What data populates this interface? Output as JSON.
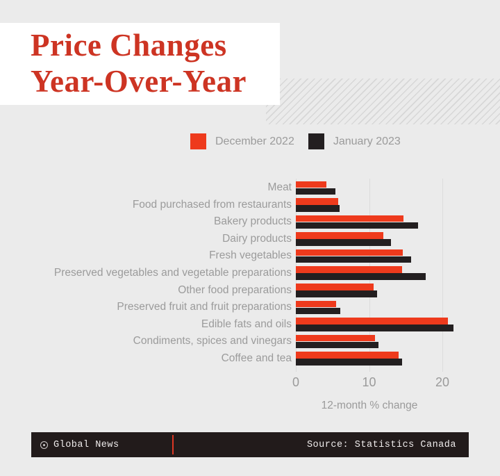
{
  "header": {
    "title_line1": "Price Changes",
    "title_line2": "Year-Over-Year",
    "title_color": "#cd3423"
  },
  "legend": [
    {
      "label": "December 2022",
      "color": "#ee3a1c"
    },
    {
      "label": "January 2023",
      "color": "#231f20"
    }
  ],
  "chart_data": {
    "type": "bar",
    "orientation": "horizontal",
    "title": "Price Changes Year-Over-Year",
    "xlabel": "12-month % change",
    "x_ticks": [
      0,
      10,
      20
    ],
    "xlim": [
      0,
      22
    ],
    "grid": true,
    "legend_position": "top",
    "categories": [
      "Meat",
      "Food purchased from restaurants",
      "Bakery products",
      "Dairy products",
      "Fresh vegetables",
      "Preserved vegetables and vegetable preparations",
      "Other food preparations",
      "Preserved fruit and fruit preparations",
      "Edible fats and oils",
      "Condiments, spices and vinegars",
      "Coffee and tea"
    ],
    "series": [
      {
        "name": "December 2022",
        "color": "#ee3a1c",
        "values": [
          4.2,
          5.8,
          14.7,
          11.9,
          14.6,
          14.5,
          10.6,
          5.5,
          20.8,
          10.8,
          14.0
        ]
      },
      {
        "name": "January 2023",
        "color": "#231f20",
        "values": [
          5.4,
          6.0,
          16.7,
          13.0,
          15.7,
          17.7,
          11.1,
          6.1,
          21.5,
          11.3,
          14.5
        ]
      }
    ]
  },
  "footer": {
    "brand": "Global News",
    "source": "Source: Statistics Canada",
    "divider_color": "#dd3724",
    "background": "#221b1b"
  }
}
